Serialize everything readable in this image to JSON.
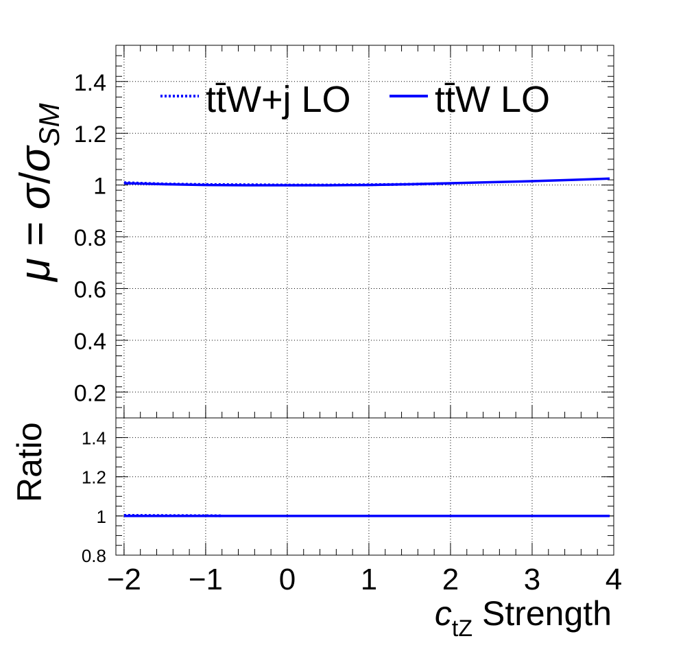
{
  "chart_data": [
    {
      "type": "line",
      "panel": "top",
      "ylabel": "μ = σ/σSM",
      "ylabel_parts": {
        "mu": "μ",
        "eq": " = ",
        "sigma": "σ",
        "slash": "/",
        "sigma2": "σ",
        "sub": "SM"
      },
      "xlim": [
        -2.1,
        4
      ],
      "ylim": [
        0.1,
        1.54
      ],
      "yticks": [
        "0.2",
        "0.4",
        "0.6",
        "0.8",
        "1",
        "1.2",
        "1.4"
      ],
      "ytick_values": [
        0.2,
        0.4,
        0.6,
        0.8,
        1.0,
        1.2,
        1.4
      ],
      "grid": true,
      "legend_position": "top",
      "series": [
        {
          "name": "tt̄W+j LO",
          "style": "dotted",
          "color": "#0000ff",
          "x": [
            -2.0,
            -1.5,
            -1.0,
            -0.5,
            0.0,
            0.5,
            1.0,
            1.5,
            2.0
          ],
          "y": [
            1.009,
            1.004,
            1.002,
            1.001,
            1.0,
            1.0,
            1.001,
            1.003,
            1.006
          ]
        },
        {
          "name": "tt̄W LO",
          "style": "solid",
          "color": "#0000ff",
          "x": [
            -2.0,
            -1.5,
            -1.0,
            -0.5,
            0.0,
            0.5,
            1.0,
            1.5,
            2.0,
            2.5,
            3.0,
            3.5,
            3.95
          ],
          "y": [
            1.007,
            1.003,
            1.0,
            0.999,
            0.999,
            0.999,
            1.0,
            1.003,
            1.007,
            1.011,
            1.015,
            1.02,
            1.025
          ]
        }
      ]
    },
    {
      "type": "line",
      "panel": "bottom",
      "ylabel": "Ratio",
      "xlabel": "ctZ Strength",
      "xlabel_parts": {
        "c": "c",
        "sub": "tZ",
        "rest": " Strength"
      },
      "xlim": [
        -2.1,
        4
      ],
      "ylim": [
        0.8,
        1.5
      ],
      "xticks": [
        "−2",
        "−1",
        "0",
        "1",
        "2",
        "3",
        "4"
      ],
      "xtick_values": [
        -2,
        -1,
        0,
        1,
        2,
        3,
        4
      ],
      "yticks": [
        "0.8",
        "1",
        "1.2",
        "1.4"
      ],
      "ytick_values": [
        0.8,
        1.0,
        1.2,
        1.4
      ],
      "grid": true,
      "series": [
        {
          "style": "dotted",
          "color": "#0000ff",
          "x": [
            -2.0,
            -1.5,
            -0.8
          ],
          "y": [
            1.003,
            1.002,
            1.001
          ]
        },
        {
          "style": "solid",
          "color": "#0000ff",
          "x": [
            -2.0,
            -1.0,
            0.0,
            1.0,
            2.0,
            3.0,
            3.95
          ],
          "y": [
            1.0,
            1.0,
            1.0,
            1.0,
            1.0,
            1.0,
            1.0
          ]
        }
      ]
    }
  ]
}
